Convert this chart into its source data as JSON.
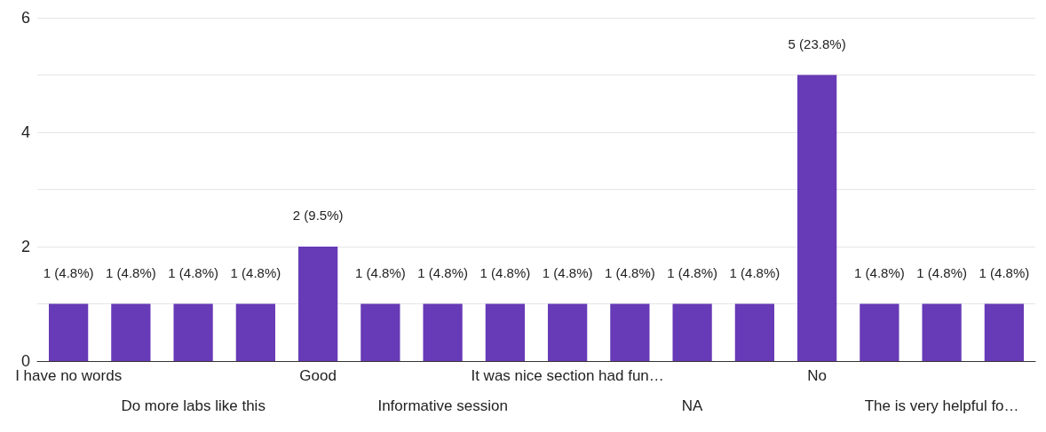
{
  "chart_data": {
    "type": "bar",
    "categories": [
      "I have no words",
      null,
      "Do more labs like this",
      null,
      "Good",
      null,
      "Informative session",
      null,
      "It was nice section had fun…",
      null,
      "NA",
      null,
      "No",
      null,
      "The is very helpful fo…",
      null
    ],
    "values": [
      1,
      1,
      1,
      1,
      2,
      1,
      1,
      1,
      1,
      1,
      1,
      1,
      5,
      1,
      1,
      1
    ],
    "value_labels": [
      "1 (4.8%)",
      "1 (4.8%)",
      "1 (4.8%)",
      "1 (4.8%)",
      "2 (9.5%)",
      "1 (4.8%)",
      "1 (4.8%)",
      "1 (4.8%)",
      "1 (4.8%)",
      "1 (4.8%)",
      "1 (4.8%)",
      "1 (4.8%)",
      "5 (23.8%)",
      "1 (4.8%)",
      "1 (4.8%)",
      "1 (4.8%)"
    ],
    "color": "#673ab7",
    "ylim": [
      0,
      6
    ],
    "yticks": [
      0,
      2,
      4,
      6
    ],
    "grid": "y"
  }
}
